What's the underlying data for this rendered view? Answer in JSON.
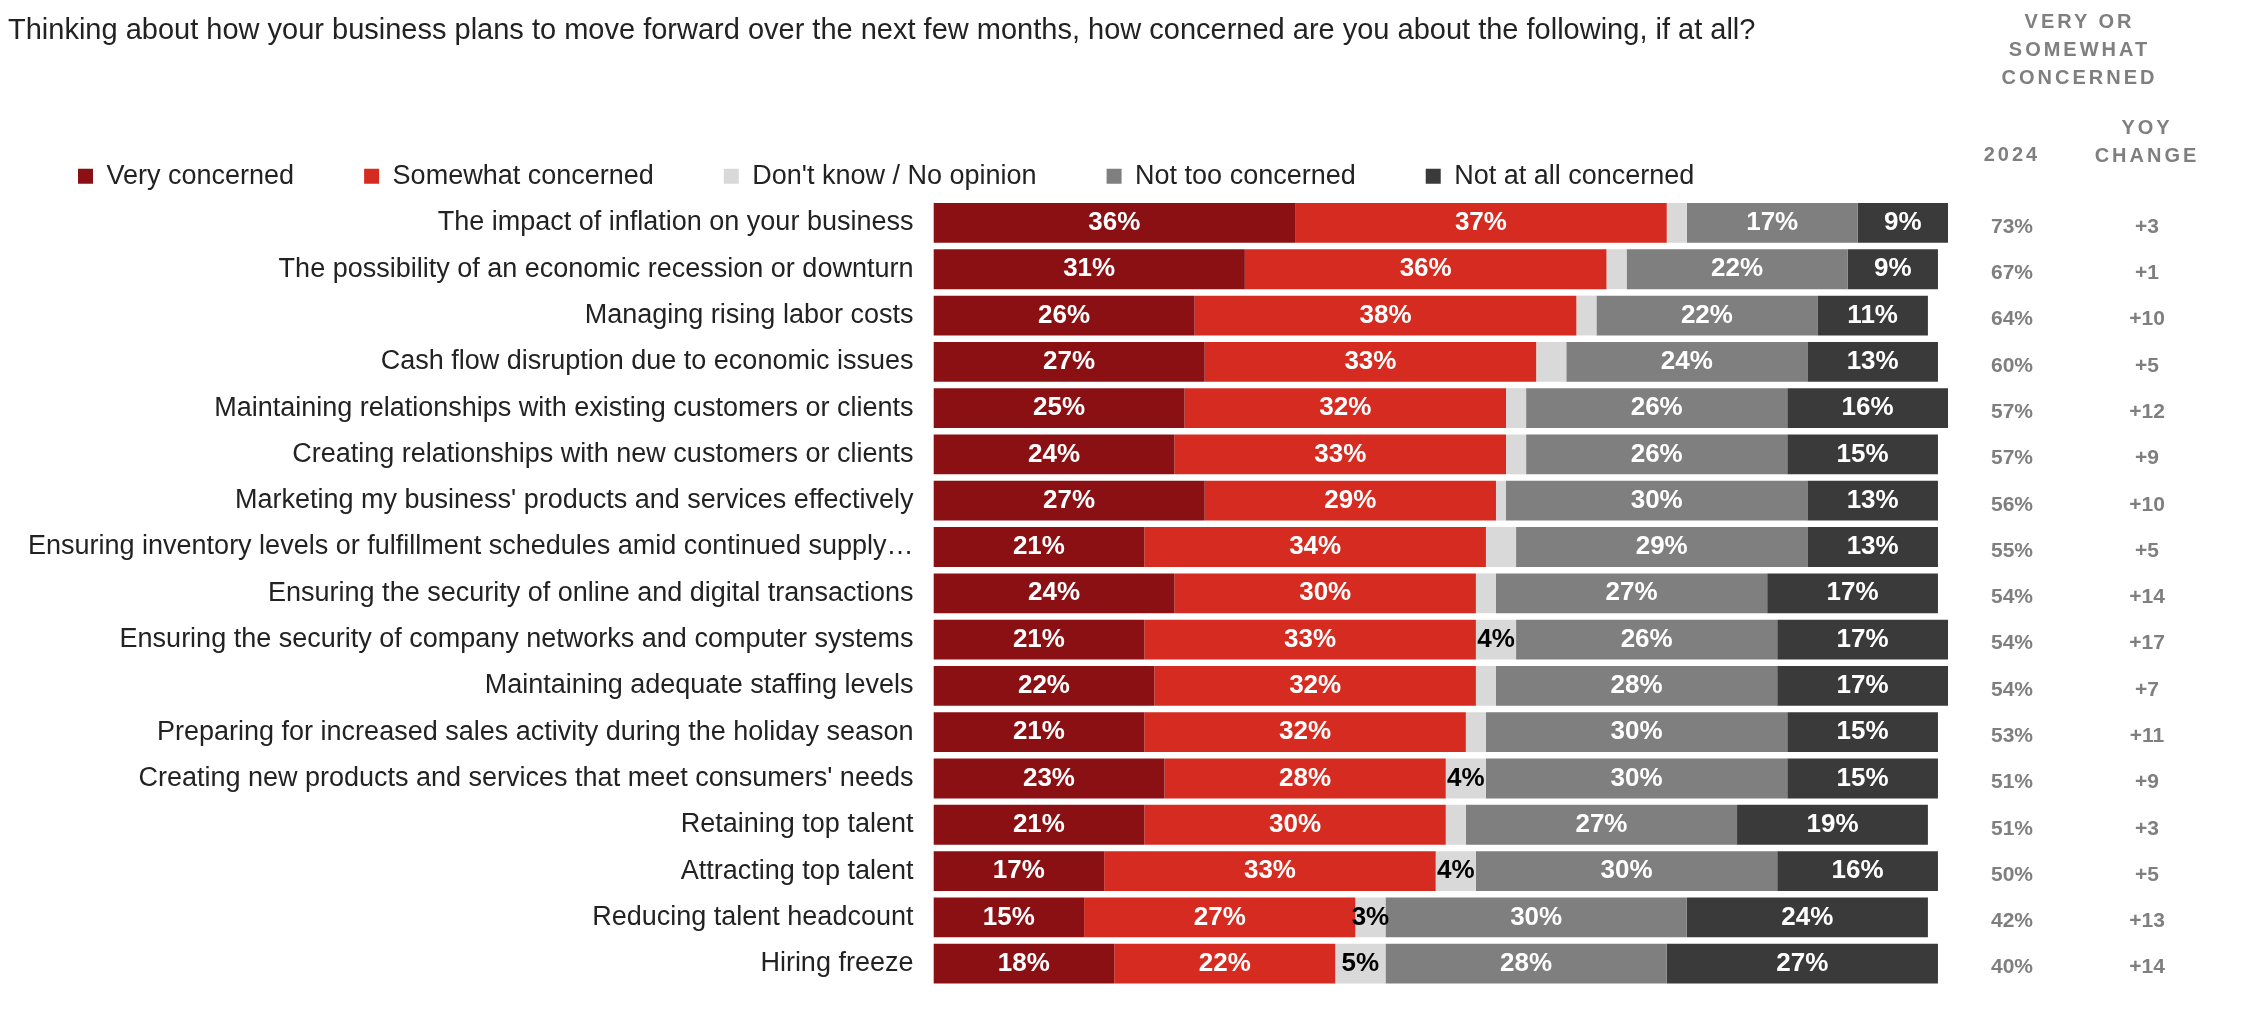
{
  "chart_data": {
    "type": "bar",
    "orientation": "horizontal",
    "stacked": true,
    "legend": "top",
    "grid": false,
    "title": "Thinking about how your business plans to move forward over the next few months, how concerned are you about the following, if at all?",
    "categories": [
      "The impact of inflation on your business",
      "The possibility of an economic recession or downturn",
      "Managing rising labor costs",
      "Cash flow disruption due to economic issues",
      "Maintaining relationships with existing customers or clients",
      "Creating relationships with new customers or clients",
      "Marketing my business' products and services effectively",
      "Ensuring inventory levels or fulfillment schedules amid continued supply…",
      "Ensuring the security of online and digital transactions",
      "Ensuring the security of company networks and computer systems",
      "Maintaining adequate staffing levels",
      "Preparing for increased sales activity during the holiday season",
      "Creating new products and services that meet consumers' needs",
      "Retaining top talent",
      "Attracting top talent",
      "Reducing talent headcount",
      "Hiring freeze"
    ],
    "series": [
      {
        "name": "Very concerned",
        "color": "#8b1014",
        "values": [
          36,
          31,
          26,
          27,
          25,
          24,
          27,
          21,
          24,
          21,
          22,
          21,
          23,
          21,
          17,
          15,
          18
        ],
        "value_labels": [
          "36%",
          "31%",
          "26%",
          "27%",
          "25%",
          "24%",
          "27%",
          "21%",
          "24%",
          "21%",
          "22%",
          "21%",
          "23%",
          "21%",
          "17%",
          "15%",
          "18%"
        ]
      },
      {
        "name": "Somewhat concerned",
        "color": "#d62b20",
        "values": [
          37,
          36,
          38,
          33,
          32,
          33,
          29,
          34,
          30,
          33,
          32,
          32,
          28,
          30,
          33,
          27,
          22
        ],
        "value_labels": [
          "37%",
          "36%",
          "38%",
          "33%",
          "32%",
          "33%",
          "29%",
          "34%",
          "30%",
          "33%",
          "32%",
          "32%",
          "28%",
          "30%",
          "33%",
          "27%",
          "22%"
        ]
      },
      {
        "name": "Don't know / No opinion",
        "color": "#d9d9d9",
        "values": [
          2,
          2,
          2,
          3,
          2,
          2,
          1,
          3,
          2,
          4,
          2,
          2,
          4,
          2,
          4,
          3,
          5
        ],
        "value_labels": [
          null,
          null,
          null,
          null,
          null,
          null,
          null,
          null,
          null,
          "4%",
          null,
          null,
          "4%",
          null,
          "4%",
          "3%",
          "5%"
        ]
      },
      {
        "name": "Not too concerned",
        "color": "#7f7f7f",
        "values": [
          17,
          22,
          22,
          24,
          26,
          26,
          30,
          29,
          27,
          26,
          28,
          30,
          30,
          27,
          30,
          30,
          28
        ],
        "value_labels": [
          "17%",
          "22%",
          "22%",
          "24%",
          "26%",
          "26%",
          "30%",
          "29%",
          "27%",
          "26%",
          "28%",
          "30%",
          "30%",
          "27%",
          "30%",
          "30%",
          "28%"
        ]
      },
      {
        "name": "Not at all concerned",
        "color": "#3a3a3a",
        "values": [
          9,
          9,
          11,
          13,
          16,
          15,
          13,
          13,
          17,
          17,
          17,
          15,
          15,
          19,
          16,
          24,
          27
        ],
        "value_labels": [
          "9%",
          "9%",
          "11%",
          "13%",
          "16%",
          "15%",
          "13%",
          "13%",
          "17%",
          "17%",
          "17%",
          "15%",
          "15%",
          "19%",
          "16%",
          "24%",
          "27%"
        ]
      }
    ],
    "annotations": [
      "VERY OR SOMEWHAT CONCERNED",
      "2024",
      "YOY CHANGE",
      "73%",
      "+3",
      "67%",
      "+1",
      "64%",
      "+10",
      "60%",
      "+5",
      "57%",
      "+12",
      "57%",
      "+9",
      "56%",
      "+10",
      "55%",
      "+5",
      "54%",
      "+14",
      "54%",
      "+17",
      "54%",
      "+7",
      "53%",
      "+11",
      "51%",
      "+9",
      "51%",
      "+3",
      "50%",
      "+5",
      "42%",
      "+13",
      "40%",
      "+14"
    ]
  }
}
